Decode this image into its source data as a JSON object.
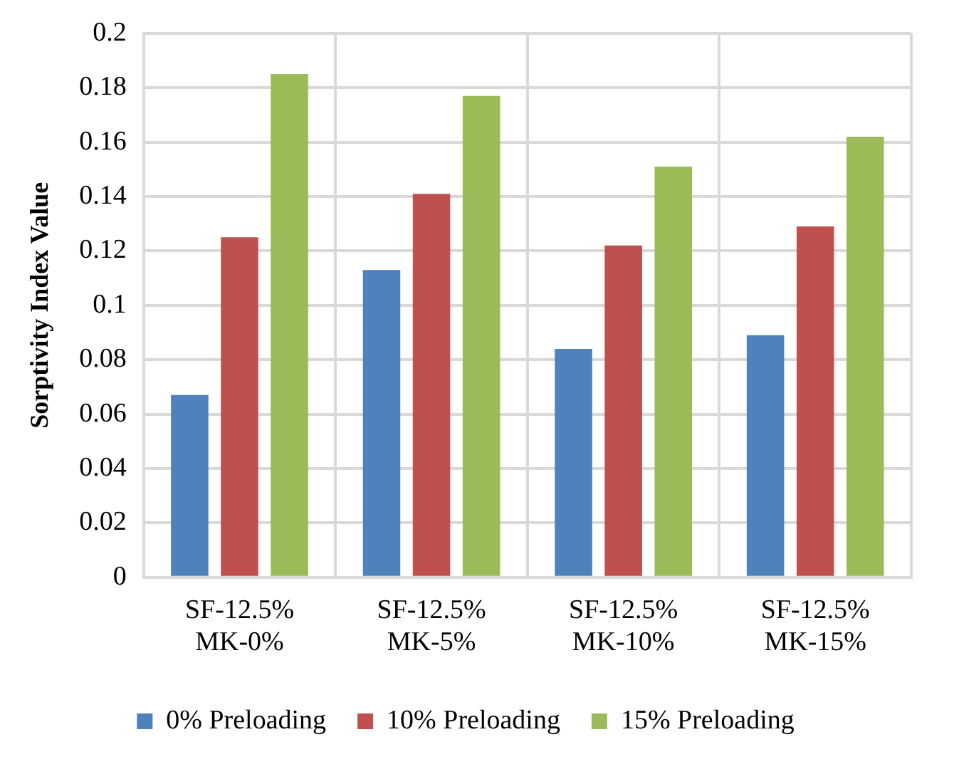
{
  "chart_data": {
    "type": "bar",
    "ylabel": "Sorptivity Index Value",
    "categories": [
      "SF-12.5%\nMK-0%",
      "SF-12.5%\nMK-5%",
      "SF-12.5%\nMK-10%",
      "SF-12.5%\nMK-15%"
    ],
    "series": [
      {
        "name": "0% Preloading",
        "color": "#4f81bd",
        "values": [
          0.067,
          0.113,
          0.084,
          0.089
        ]
      },
      {
        "name": "10% Preloading",
        "color": "#c0504d",
        "values": [
          0.125,
          0.141,
          0.122,
          0.129
        ]
      },
      {
        "name": "15% Preloading",
        "color": "#9bbb59",
        "values": [
          0.185,
          0.177,
          0.151,
          0.162
        ]
      }
    ],
    "ylim": [
      0,
      0.2
    ],
    "yticks": [
      0,
      0.02,
      0.04,
      0.06,
      0.08,
      0.1,
      0.12,
      0.14,
      0.16,
      0.18,
      0.2
    ],
    "grid": true,
    "legend": "bottom"
  }
}
